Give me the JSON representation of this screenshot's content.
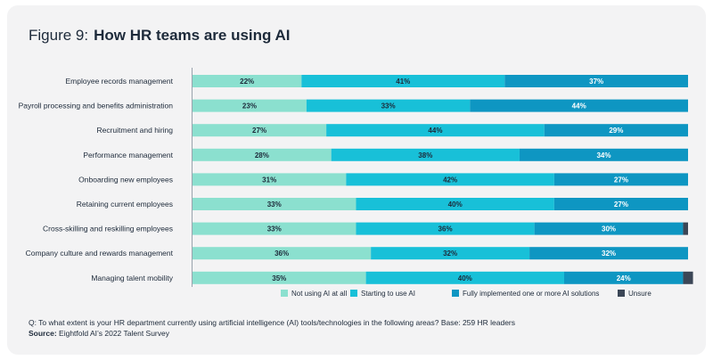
{
  "figure": {
    "label": "Figure 9:",
    "title": "How HR teams are using AI"
  },
  "chart_data": {
    "type": "bar",
    "orientation": "horizontal",
    "stacked": true,
    "title": "How HR teams are using AI",
    "xlim": [
      0,
      100
    ],
    "categories": [
      "Employee records management",
      "Payroll processing and benefits administration",
      "Recruitment and hiring",
      "Performance management",
      "Onboarding new employees",
      "Retaining current employees",
      "Cross-skilling and reskilling employees",
      "Company culture and rewards management",
      "Managing talent mobility"
    ],
    "series": [
      {
        "name": "Not using AI at all",
        "color": "#8be0cf",
        "values": [
          22,
          23,
          27,
          28,
          31,
          33,
          33,
          36,
          35
        ]
      },
      {
        "name": "Starting to use AI",
        "color": "#18c0d8",
        "values": [
          41,
          33,
          44,
          38,
          42,
          40,
          36,
          32,
          40
        ]
      },
      {
        "name": "Fully implemented one or more AI solutions",
        "color": "#0e96c2",
        "values": [
          37,
          44,
          29,
          34,
          27,
          27,
          30,
          32,
          24
        ]
      },
      {
        "name": "Unsure",
        "color": "#3b4656",
        "values": [
          0,
          0,
          0,
          0,
          0,
          0,
          1,
          0,
          2
        ]
      }
    ],
    "legend_position": "bottom"
  },
  "footnote": {
    "question": "Q: To what extent is your HR department currently using artificial intelligence (AI) tools/technologies in the following areas? Base: 259 HR leaders",
    "source_label": "Source:",
    "source_text": "Eightfold AI’s 2022 Talent Survey"
  }
}
